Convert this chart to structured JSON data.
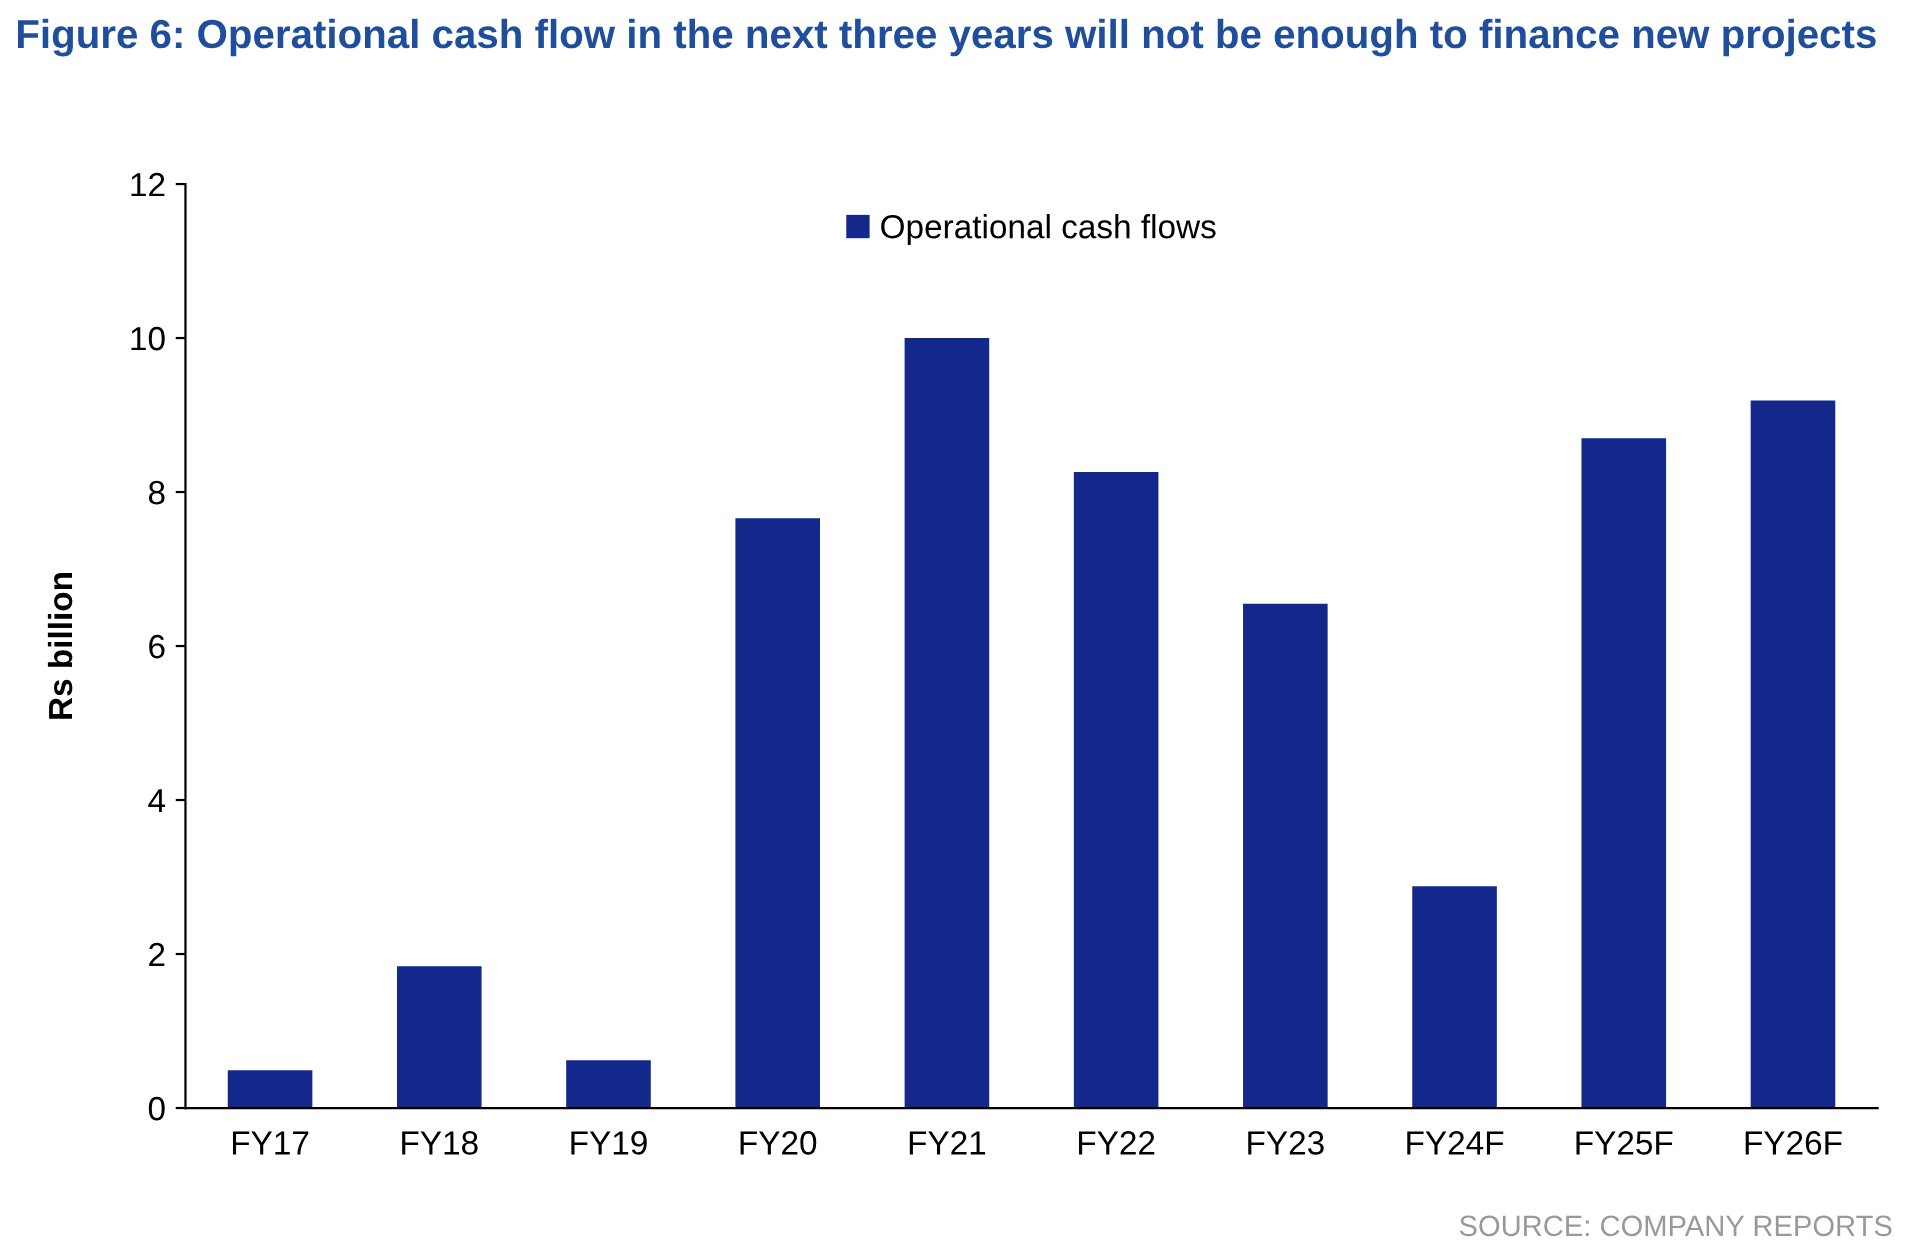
{
  "chart_data": {
    "type": "bar",
    "title": "Figure 6: Operational cash flow in the next three years will not be enough to finance new projects",
    "ylabel": "Rs billion",
    "categories": [
      "FY17",
      "FY18",
      "FY19",
      "FY20",
      "FY21",
      "FY22",
      "FY23",
      "FY24F",
      "FY25F",
      "FY26F"
    ],
    "series": [
      {
        "name": "Operational cash flows",
        "color": "#14288c",
        "values": [
          0.49,
          1.84,
          0.62,
          7.66,
          10.0,
          8.26,
          6.55,
          2.88,
          8.7,
          9.19
        ]
      }
    ],
    "ylim": [
      0,
      12
    ],
    "yticks": [
      0,
      2,
      4,
      6,
      8,
      10,
      12
    ],
    "legend": "top",
    "annotations": [
      "SOURCE: COMPANY REPORTS"
    ]
  }
}
